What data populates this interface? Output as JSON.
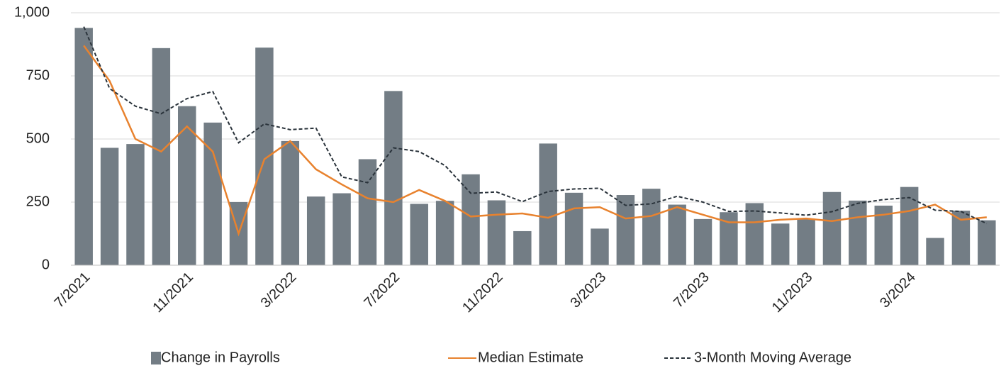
{
  "chart_data": {
    "type": "bar_line",
    "categories": [
      "7/2021",
      null,
      null,
      null,
      "11/2021",
      null,
      null,
      null,
      "3/2022",
      null,
      null,
      null,
      "7/2022",
      null,
      null,
      null,
      "11/2022",
      null,
      null,
      null,
      "3/2023",
      null,
      null,
      null,
      "7/2023",
      null,
      null,
      null,
      "11/2023",
      null,
      null,
      null,
      "3/2024",
      null,
      null,
      null
    ],
    "series": [
      {
        "name": "Change in Payrolls",
        "color": "#737d85",
        "kind": "bar",
        "values": [
          940,
          465,
          480,
          860,
          630,
          565,
          250,
          862,
          492,
          272,
          285,
          420,
          690,
          243,
          255,
          360,
          257,
          135,
          482,
          287,
          145,
          278,
          303,
          240,
          183,
          210,
          246,
          165,
          182,
          290,
          256,
          236,
          310,
          108,
          216,
          178
        ]
      },
      {
        "name": "Median Estimate",
        "color": "#e8822e",
        "kind": "line",
        "values": [
          870,
          730,
          500,
          450,
          550,
          450,
          125,
          420,
          492,
          380,
          320,
          265,
          250,
          298,
          255,
          193,
          200,
          205,
          188,
          225,
          230,
          185,
          195,
          230,
          200,
          170,
          170,
          180,
          185,
          175,
          190,
          200,
          215,
          240,
          180,
          190
        ]
      },
      {
        "name": "3-Month Moving Average",
        "color": "#2a333b",
        "kind": "dashed",
        "values": [
          945,
          700,
          630,
          600,
          660,
          688,
          485,
          560,
          537,
          543,
          350,
          327,
          465,
          450,
          395,
          285,
          290,
          252,
          292,
          302,
          305,
          237,
          243,
          273,
          250,
          213,
          215,
          207,
          198,
          212,
          245,
          260,
          268,
          218,
          213,
          165
        ]
      }
    ],
    "ylim": [
      0,
      1000
    ],
    "yticks": [
      0,
      250,
      500,
      750,
      {
        "value": 1000,
        "label": "1,000"
      }
    ],
    "grid": true,
    "legend": "bottom"
  }
}
